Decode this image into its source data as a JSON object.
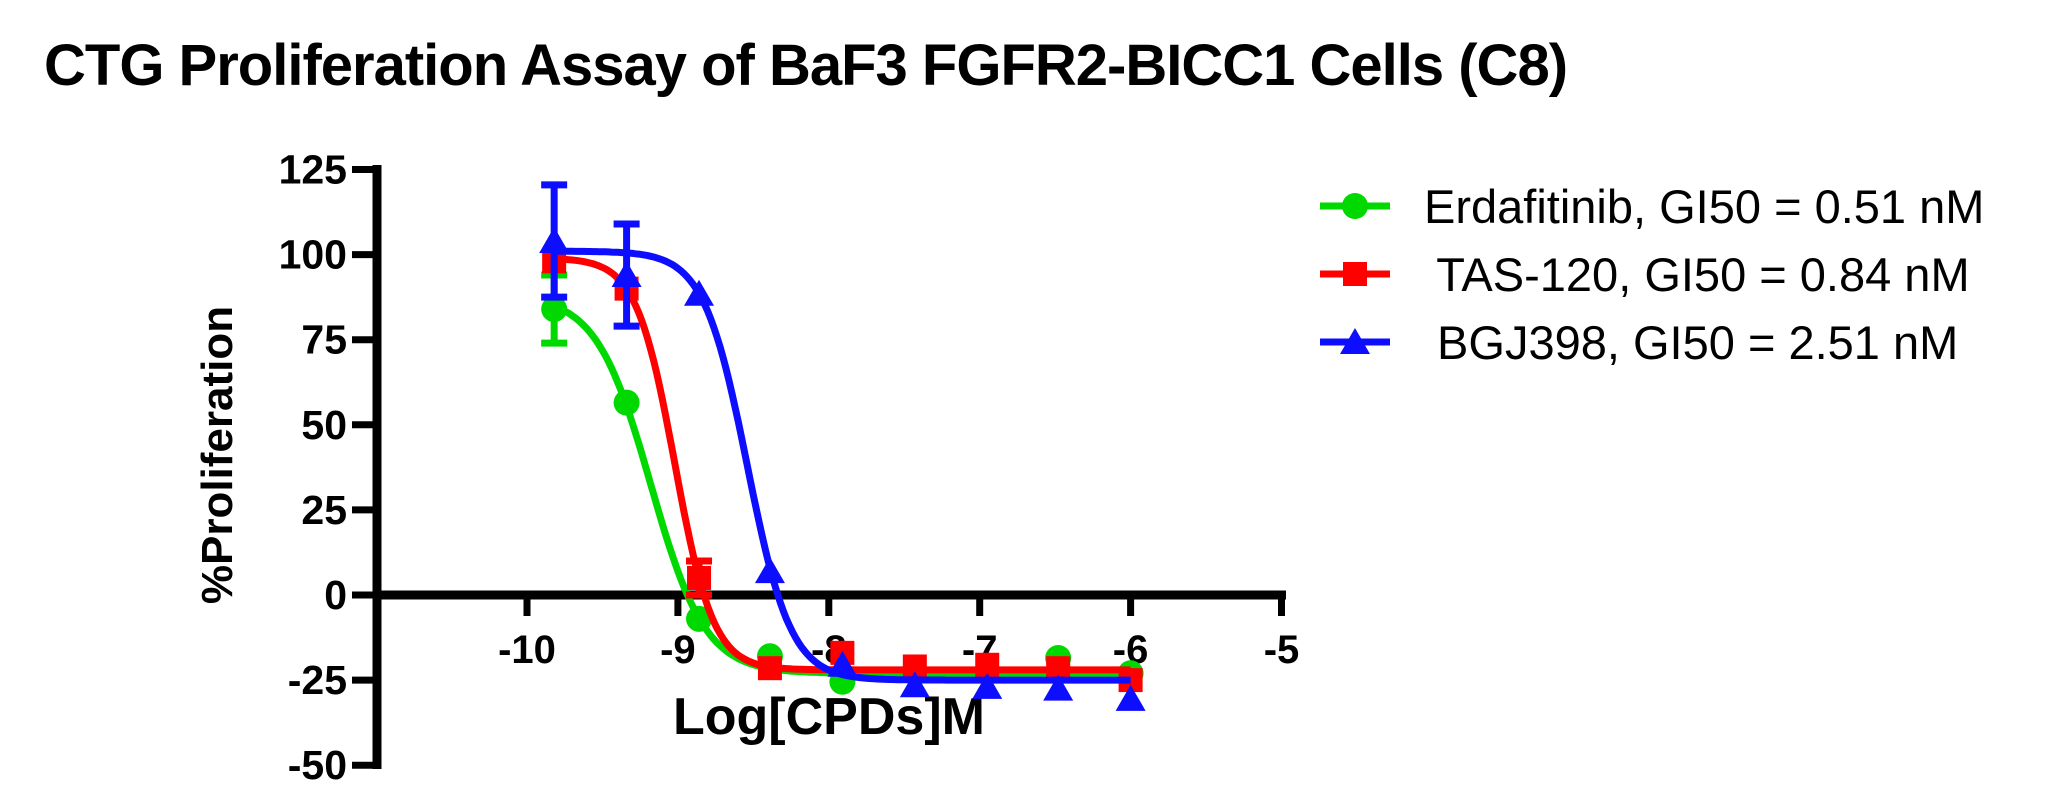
{
  "title": "CTG Proliferation Assay of BaF3 FGFR2-BICC1 Cells (C8)",
  "chart_data": {
    "type": "line",
    "title": "CTG Proliferation Assay of BaF3 FGFR2-BICC1 Cells (C8)",
    "xlabel": "Log[CPDs]M",
    "ylabel": "%Proliferation",
    "xlim": [
      -11,
      -5
    ],
    "ylim": [
      -50,
      125
    ],
    "x_ticks": [
      -10,
      -9,
      -8,
      -7,
      -6,
      -5
    ],
    "y_ticks": [
      125,
      100,
      75,
      50,
      25,
      0,
      -25,
      -50
    ],
    "grid": false,
    "legend_position": "right-outside",
    "x": [
      -9.82,
      -9.34,
      -8.86,
      -8.39,
      -7.91,
      -7.43,
      -6.95,
      -6.48,
      -6.0
    ],
    "series": [
      {
        "name": "Erdafitinib",
        "gi50_nM": 0.51,
        "legend": "Erdafitinib, GI50 = 0.51 nM",
        "color": "#00d900",
        "marker": "circle",
        "values": [
          84,
          56.5,
          -7,
          -18,
          -25.5,
          -22.5,
          -22.5,
          -18.5,
          -23
        ],
        "errors": [
          10,
          null,
          null,
          null,
          null,
          null,
          null,
          null,
          null
        ],
        "fit": {
          "top": 88,
          "bottom": -23,
          "hill": 2.4,
          "logec50": -9.18
        }
      },
      {
        "name": "TAS-120",
        "gi50_nM": 0.84,
        "legend": " TAS-120, GI50 = 0.84 nM",
        "color": "#ff0000",
        "marker": "square",
        "values": [
          98,
          90,
          5,
          -21.5,
          -17,
          -21,
          -20.5,
          -21.5,
          -25
        ],
        "errors": [
          null,
          null,
          5,
          null,
          null,
          null,
          null,
          null,
          null
        ],
        "fit": {
          "top": 99,
          "bottom": -22,
          "hill": 3.4,
          "logec50": -9.02
        }
      },
      {
        "name": "BGJ398",
        "gi50_nM": 2.51,
        "legend": " BGJ398, GI50 = 2.51 nM",
        "color": "#0d0dff",
        "marker": "triangle",
        "values": [
          104,
          94,
          88.5,
          7,
          -20.5,
          -26.5,
          -27,
          -27.5,
          -30.5
        ],
        "errors": [
          16.5,
          15,
          null,
          null,
          null,
          null,
          null,
          null,
          null
        ],
        "fit": {
          "top": 101,
          "bottom": -25,
          "hill": 3.0,
          "logec50": -8.54
        }
      }
    ]
  }
}
